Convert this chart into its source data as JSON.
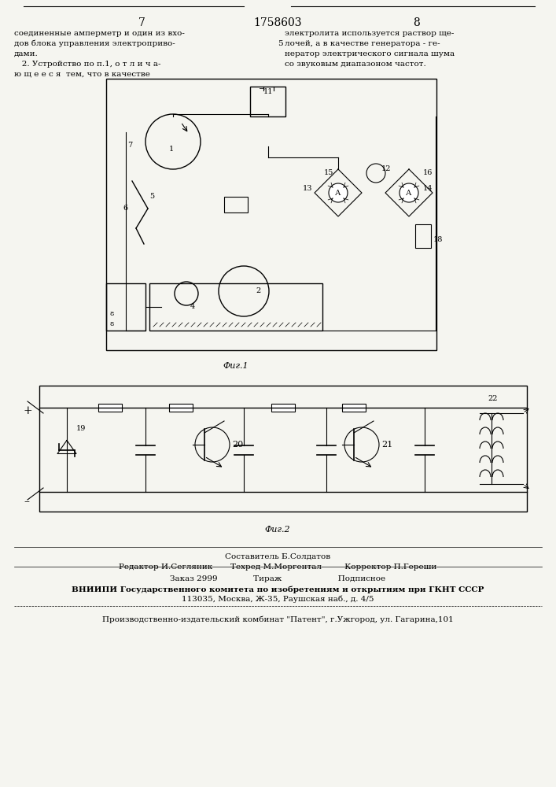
{
  "bg_color": "#f5f5f0",
  "page_numbers": [
    "7",
    "1758603",
    "8"
  ],
  "text_left_col": [
    "соединенные амперметр и один из вхо-",
    "дов блока управления электроприво-",
    "дами.",
    "   2. Устройство по п.1, о т л и ч а-",
    "ю щ е е с я  тем, что в качестве"
  ],
  "text_right_col": [
    "электролита используется раствор ще-",
    "лочей, а в качестве генератора - ге-",
    "нератор электрического сигнала шума",
    "со звуковым диапазоном частот."
  ],
  "right_col_numbering": "5",
  "fig1_caption": "Фиг.1",
  "fig2_caption": "Фиг.2",
  "bottom_text": [
    "Составитель Б.Солдатов",
    "Редактор И.Сегляник       Техред М.Моргентал         Корректор П.Гереши",
    "Заказ 2999              Тираж                      Подписное",
    "ВНИИПИ Государственного комитета по изобретениям и открытиям при ГКНТ СССР",
    "113035, Москва, Ж-35, Раушская наб., д. 4/5",
    "Производственно-издательский комбинат \"Патент\", г.Ужгород, ул. Гагарина,101"
  ]
}
